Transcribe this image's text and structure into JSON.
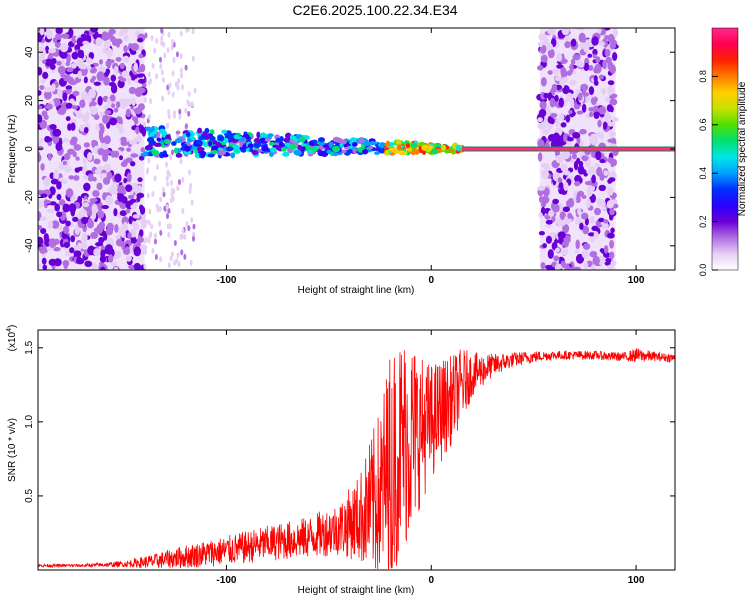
{
  "title": "C2E6.2025.100.22.34.E34",
  "chart_data": [
    {
      "type": "heatmap",
      "xlabel": "Height of straight line (km)",
      "ylabel": "Frequency (Hz)",
      "xlim": [
        -192,
        119
      ],
      "ylim": [
        -50,
        50
      ],
      "xticks": [
        -100,
        0,
        100
      ],
      "yticks": [
        -40,
        -20,
        0,
        20,
        40
      ],
      "colorbar": {
        "label": "Normalized spectral amplitude",
        "range": [
          0,
          1
        ],
        "ticks": [
          "0.0",
          "0.2",
          "0.4",
          "0.6",
          "0.8"
        ],
        "colors": [
          "#ffffff",
          "#e6cff5",
          "#b06ee0",
          "#6a00d8",
          "#2a00ff",
          "#0030ff",
          "#00a0ff",
          "#00e6e6",
          "#00e070",
          "#50e000",
          "#c8e000",
          "#ffd000",
          "#ff7a00",
          "#ff2000",
          "#ff0050",
          "#ff2a8c"
        ]
      },
      "features": [
        {
          "name": "noise band",
          "x_range": [
            -192,
            -140
          ]
        },
        {
          "name": "sparse noise",
          "x_range": [
            -140,
            -115
          ]
        },
        {
          "name": "signal trace",
          "x_range": [
            -140,
            15
          ],
          "freq_start": 3,
          "freq_end": 0
        },
        {
          "name": "stable tone",
          "x_range": [
            15,
            119
          ],
          "freq": 0
        },
        {
          "name": "noise band",
          "x_range": [
            53,
            90
          ]
        }
      ]
    },
    {
      "type": "line",
      "xlabel": "Height of straight line (km)",
      "ylabel": "SNR (10 * v/v)",
      "multiplier": "(x10",
      "multiplier_exp": "4",
      "xlim": [
        -192,
        119
      ],
      "ylim": [
        0,
        1.62
      ],
      "xticks": [
        -100,
        0,
        100
      ],
      "yticks": [
        "0.5",
        "1.0",
        "1.5"
      ],
      "color": "#ff0000",
      "series": [
        {
          "x": [
            -192,
            -170,
            -150,
            -135,
            -120,
            -100,
            -80,
            -60,
            -45,
            -35,
            -25,
            -20,
            -15,
            -10,
            -5,
            0,
            5,
            10,
            15,
            20,
            30,
            40,
            50,
            60,
            70,
            80,
            90,
            95,
            100,
            110,
            119
          ],
          "y": [
            0.03,
            0.03,
            0.04,
            0.06,
            0.09,
            0.13,
            0.18,
            0.22,
            0.28,
            0.35,
            0.5,
            0.7,
            0.85,
            0.9,
            0.95,
            1.0,
            1.08,
            1.15,
            1.25,
            1.32,
            1.38,
            1.42,
            1.44,
            1.45,
            1.45,
            1.45,
            1.44,
            1.44,
            1.45,
            1.44,
            1.43
          ],
          "spread": [
            0.01,
            0.01,
            0.02,
            0.05,
            0.08,
            0.1,
            0.12,
            0.14,
            0.18,
            0.3,
            0.6,
            0.8,
            0.75,
            0.7,
            0.5,
            0.4,
            0.35,
            0.3,
            0.25,
            0.15,
            0.08,
            0.05,
            0.04,
            0.03,
            0.03,
            0.03,
            0.03,
            0.03,
            0.05,
            0.03,
            0.03
          ]
        }
      ]
    }
  ]
}
